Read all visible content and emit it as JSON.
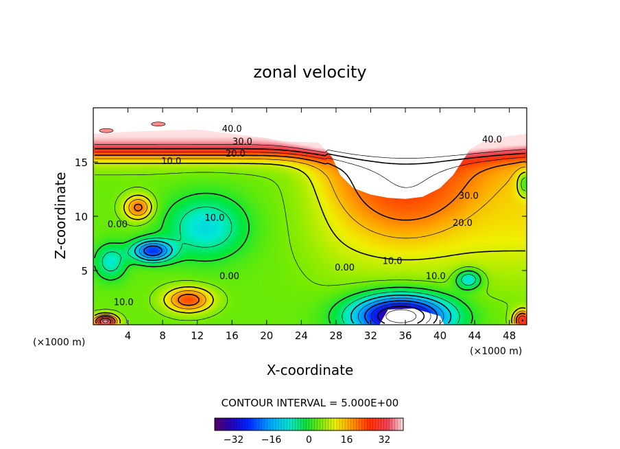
{
  "chart_data": {
    "type": "heatmap",
    "title": "zonal velocity",
    "xlabel": "X-coordinate",
    "ylabel": "Z-coordinate",
    "x_unit_label": "(×1000 m)",
    "xlim": [
      0,
      50
    ],
    "ylim": [
      0,
      20
    ],
    "x_ticks": [
      4,
      8,
      12,
      16,
      20,
      24,
      28,
      32,
      36,
      40,
      44,
      48
    ],
    "y_ticks": [
      5,
      10,
      15
    ],
    "contour_interval_text": "CONTOUR INTERVAL = 5.000E+00",
    "contour_interval": 5,
    "value_range": [
      -40,
      40
    ],
    "colorbar_ticks": [
      -32,
      -16,
      0,
      16,
      32
    ],
    "contour_labels": [
      {
        "text": "40.0",
        "x": 16.0,
        "z": 17.8
      },
      {
        "text": "30.0",
        "x": 17.2,
        "z": 16.6
      },
      {
        "text": "20.0",
        "x": 16.4,
        "z": 15.5
      },
      {
        "text": "10.0",
        "x": 9.0,
        "z": 14.8
      },
      {
        "text": "40.0",
        "x": 46.0,
        "z": 16.8
      },
      {
        "text": "30.0",
        "x": 43.3,
        "z": 11.6
      },
      {
        "text": "20.0",
        "x": 42.6,
        "z": 9.1
      },
      {
        "text": "10.0",
        "x": 14.0,
        "z": 9.6
      },
      {
        "text": "0.00",
        "x": 2.8,
        "z": 9.0
      },
      {
        "text": "0.00",
        "x": 15.7,
        "z": 4.2
      },
      {
        "text": "0.00",
        "x": 29.0,
        "z": 5.0
      },
      {
        "text": "10.0",
        "x": 34.5,
        "z": 5.6
      },
      {
        "text": "10.0",
        "x": 39.5,
        "z": 4.2
      },
      {
        "text": "10.0",
        "x": 3.5,
        "z": 1.8
      }
    ],
    "no_data_region_x": [
      0,
      50
    ],
    "no_data_region_top_z": [
      [
        0,
        17.6
      ],
      [
        4,
        17.8
      ],
      [
        8,
        17.9
      ],
      [
        12,
        18.0
      ],
      [
        16,
        17.6
      ],
      [
        20,
        17.2
      ],
      [
        22,
        16.9
      ],
      [
        26,
        16.8
      ],
      [
        27.5,
        15.5
      ],
      [
        28.5,
        13.8
      ],
      [
        30,
        12.6
      ],
      [
        32,
        12.0
      ],
      [
        34,
        11.7
      ],
      [
        36,
        11.6
      ],
      [
        38,
        11.8
      ],
      [
        40,
        12.6
      ],
      [
        41.5,
        13.8
      ],
      [
        42.5,
        15.0
      ],
      [
        43.5,
        16.2
      ],
      [
        45,
        16.9
      ],
      [
        48,
        17.4
      ],
      [
        50,
        17.6
      ]
    ],
    "no_data_bottom_pocket": [
      [
        33,
        0
      ],
      [
        34,
        1.4
      ],
      [
        37,
        1.5
      ],
      [
        40,
        0.8
      ],
      [
        40.5,
        0
      ]
    ],
    "cloud_fragments": [
      {
        "x": 7.5,
        "z": 18.5
      },
      {
        "x": 1.5,
        "z": 17.9
      }
    ],
    "extrema": [
      {
        "x": 5.2,
        "z": 10.8,
        "value": 22,
        "kind": "max"
      },
      {
        "x": 11.0,
        "z": 2.3,
        "value": 24,
        "kind": "max"
      },
      {
        "x": 6.8,
        "z": 6.8,
        "value": -25,
        "kind": "min"
      },
      {
        "x": 35.5,
        "z": 1.0,
        "value": -38,
        "kind": "min"
      },
      {
        "x": 1.5,
        "z": 0.3,
        "value": 36,
        "kind": "max"
      },
      {
        "x": 43.2,
        "z": 4.2,
        "value": -15,
        "kind": "min"
      }
    ]
  }
}
